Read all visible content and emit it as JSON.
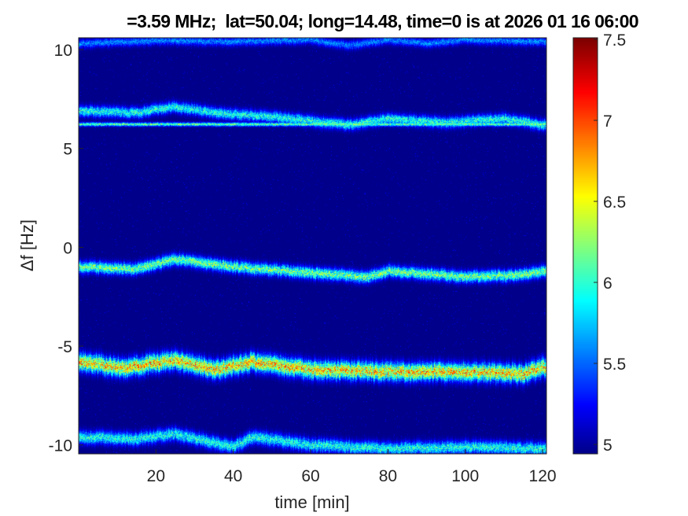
{
  "chart_data": {
    "type": "heatmap",
    "title": "=3.59 MHz;  lat=50.04; long=14.48, time=0 is at 2026 01 16 06:00",
    "xlabel": "time [min]",
    "ylabel": "Δf [Hz]",
    "xlim": [
      0,
      121
    ],
    "ylim": [
      -10.45,
      10.6
    ],
    "xticks": [
      20,
      40,
      60,
      80,
      100,
      120
    ],
    "yticks": [
      10,
      5,
      0,
      -5,
      -10
    ],
    "colormap": "jet",
    "clim": [
      4.92,
      7.5
    ],
    "colorbar_ticks": [
      5,
      5.5,
      6,
      6.5,
      7,
      7.5
    ],
    "background_level": 4.95,
    "traces": [
      {
        "peak": 5.8,
        "spread": 0.15,
        "points": [
          [
            0,
            10.3
          ],
          [
            20,
            10.45
          ],
          [
            40,
            10.4
          ],
          [
            60,
            10.5
          ],
          [
            70,
            10.2
          ],
          [
            80,
            10.5
          ],
          [
            90,
            10.3
          ],
          [
            100,
            10.5
          ],
          [
            120,
            10.4
          ]
        ]
      },
      {
        "peak": 6.5,
        "spread": 0.04,
        "points": [
          [
            0,
            6.22
          ],
          [
            120,
            6.22
          ]
        ]
      },
      {
        "peak": 6.3,
        "spread": 0.2,
        "points": [
          [
            0,
            6.9
          ],
          [
            15,
            6.8
          ],
          [
            25,
            7.1
          ],
          [
            35,
            6.8
          ],
          [
            50,
            6.6
          ],
          [
            60,
            6.4
          ],
          [
            70,
            6.2
          ],
          [
            80,
            6.5
          ],
          [
            95,
            6.3
          ],
          [
            110,
            6.5
          ],
          [
            120,
            6.2
          ]
        ]
      },
      {
        "peak": 6.6,
        "spread": 0.22,
        "points": [
          [
            0,
            -1.0
          ],
          [
            15,
            -1.1
          ],
          [
            25,
            -0.6
          ],
          [
            40,
            -1.0
          ],
          [
            60,
            -1.3
          ],
          [
            75,
            -1.5
          ],
          [
            80,
            -1.2
          ],
          [
            100,
            -1.5
          ],
          [
            115,
            -1.4
          ],
          [
            120,
            -1.2
          ]
        ]
      },
      {
        "peak": 7.2,
        "spread": 0.35,
        "points": [
          [
            0,
            -5.8
          ],
          [
            12,
            -6.1
          ],
          [
            25,
            -5.7
          ],
          [
            35,
            -6.2
          ],
          [
            45,
            -5.8
          ],
          [
            60,
            -6.2
          ],
          [
            80,
            -6.3
          ],
          [
            100,
            -6.3
          ],
          [
            115,
            -6.4
          ],
          [
            120,
            -6.1
          ]
        ]
      },
      {
        "peak": 6.3,
        "spread": 0.25,
        "points": [
          [
            0,
            -9.6
          ],
          [
            15,
            -9.7
          ],
          [
            25,
            -9.45
          ],
          [
            40,
            -10.1
          ],
          [
            45,
            -9.6
          ],
          [
            60,
            -10.0
          ],
          [
            80,
            -10.2
          ],
          [
            100,
            -10.1
          ],
          [
            120,
            -10.2
          ]
        ]
      }
    ]
  }
}
